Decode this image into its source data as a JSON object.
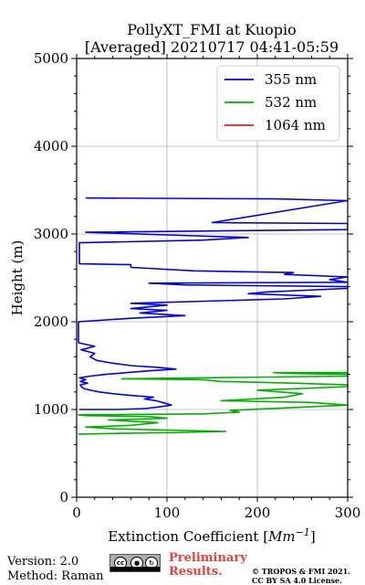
{
  "chart_data": {
    "type": "line",
    "title": "PollyXT_FMI at Kuopio",
    "subtitle": "[Averaged] 20210717 04:41-05:59",
    "xlabel_text": "Extinction Coefficient [",
    "xlabel_unit": "Mm",
    "xlabel_exp": "−1",
    "xlabel_close": "]",
    "ylabel": "Height (m)",
    "xlim": [
      0,
      300
    ],
    "ylim": [
      0,
      5000
    ],
    "xticks": [
      0,
      100,
      200,
      300
    ],
    "yticks": [
      0,
      1000,
      2000,
      3000,
      4000,
      5000
    ],
    "grid": true,
    "legend_position": "top-right",
    "series": [
      {
        "name": "355 nm",
        "color": "#0000ee",
        "points": [
          [
            3,
            1000
          ],
          [
            20,
            1000
          ],
          [
            45,
            1000
          ],
          [
            75,
            1010
          ],
          [
            92,
            1030
          ],
          [
            105,
            1050
          ],
          [
            95,
            1080
          ],
          [
            88,
            1100
          ],
          [
            75,
            1120
          ],
          [
            85,
            1140
          ],
          [
            60,
            1160
          ],
          [
            40,
            1180
          ],
          [
            25,
            1200
          ],
          [
            15,
            1220
          ],
          [
            8,
            1240
          ],
          [
            5,
            1260
          ],
          [
            4,
            1280
          ],
          [
            12,
            1300
          ],
          [
            4,
            1320
          ],
          [
            10,
            1340
          ],
          [
            3,
            1360
          ],
          [
            15,
            1380
          ],
          [
            32,
            1400
          ],
          [
            55,
            1420
          ],
          [
            78,
            1440
          ],
          [
            110,
            1460
          ],
          [
            90,
            1480
          ],
          [
            60,
            1500
          ],
          [
            38,
            1530
          ],
          [
            22,
            1560
          ],
          [
            15,
            1600
          ],
          [
            20,
            1640
          ],
          [
            5,
            1680
          ],
          [
            20,
            1720
          ],
          [
            2,
            1760
          ],
          [
            2,
            2000
          ],
          [
            60,
            2040
          ],
          [
            120,
            2070
          ],
          [
            70,
            2100
          ],
          [
            100,
            2130
          ],
          [
            60,
            2150
          ],
          [
            80,
            2170
          ],
          [
            100,
            2190
          ],
          [
            60,
            2210
          ],
          [
            160,
            2240
          ],
          [
            230,
            2260
          ],
          [
            270,
            2290
          ],
          [
            190,
            2320
          ],
          [
            210,
            2340
          ],
          [
            300,
            2380
          ],
          [
            300,
            2400
          ],
          [
            120,
            2420
          ],
          [
            80,
            2440
          ],
          [
            300,
            2450
          ],
          [
            280,
            2480
          ],
          [
            300,
            2510
          ],
          [
            230,
            2540
          ],
          [
            240,
            2560
          ],
          [
            130,
            2580
          ],
          [
            60,
            2620
          ],
          [
            60,
            2650
          ],
          [
            3,
            2660
          ],
          [
            3,
            2900
          ],
          [
            140,
            2930
          ],
          [
            190,
            2960
          ],
          [
            100,
            2990
          ],
          [
            10,
            3020
          ],
          [
            300,
            3050
          ],
          [
            300,
            3120
          ],
          [
            150,
            3130
          ],
          [
            300,
            3380
          ],
          [
            220,
            3400
          ],
          [
            10,
            3410
          ]
        ]
      },
      {
        "name": "532 nm",
        "color": "#00b000",
        "points": [
          [
            2,
            720
          ],
          [
            120,
            740
          ],
          [
            165,
            750
          ],
          [
            40,
            780
          ],
          [
            10,
            800
          ],
          [
            60,
            820
          ],
          [
            90,
            850
          ],
          [
            35,
            880
          ],
          [
            100,
            900
          ],
          [
            80,
            920
          ],
          [
            10,
            930
          ],
          [
            2,
            940
          ],
          [
            140,
            950
          ],
          [
            180,
            970
          ],
          [
            170,
            990
          ],
          [
            300,
            1050
          ],
          [
            260,
            1080
          ],
          [
            160,
            1100
          ],
          [
            230,
            1140
          ],
          [
            250,
            1180
          ],
          [
            200,
            1220
          ],
          [
            300,
            1260
          ],
          [
            300,
            1280
          ],
          [
            240,
            1300
          ],
          [
            160,
            1320
          ],
          [
            140,
            1340
          ],
          [
            50,
            1350
          ],
          [
            300,
            1380
          ],
          [
            300,
            1400
          ],
          [
            240,
            1410
          ],
          [
            218,
            1420
          ],
          [
            300,
            1420
          ]
        ]
      },
      {
        "name": "1064 nm",
        "color": "#e02020",
        "points": []
      }
    ]
  },
  "footer": {
    "version": "Version: 2.0",
    "method": "Method: Raman",
    "cc_icon": "creative-commons-by-sa-badge",
    "cc_text": "cc",
    "preliminary_line1": "Preliminary",
    "preliminary_line2": "Results.",
    "copyright_line1": "© TROPOS & FMI 2021.",
    "copyright_line2": "CC BY SA 4.0 License."
  }
}
